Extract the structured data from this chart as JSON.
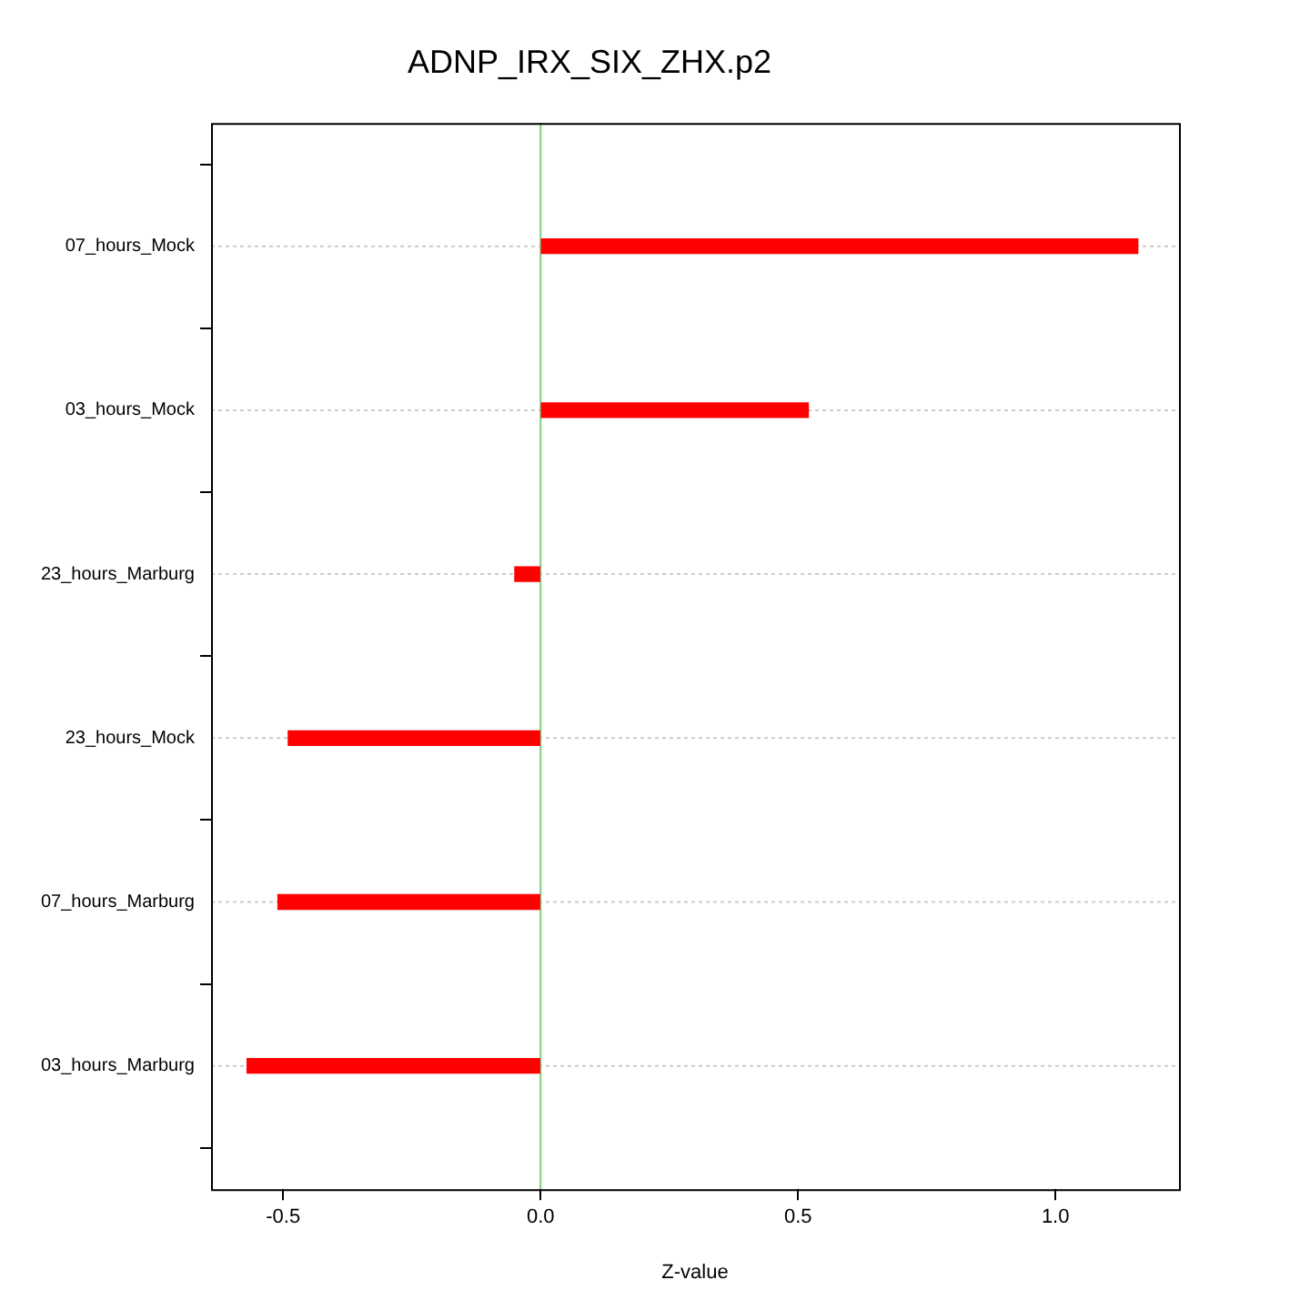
{
  "chart_data": {
    "type": "bar",
    "orientation": "horizontal",
    "title": "ADNP_IRX_SIX_ZHX.p2",
    "xlabel": "Z-value",
    "categories": [
      "07_hours_Mock",
      "03_hours_Mock",
      "23_hours_Marburg",
      "23_hours_Mock",
      "07_hours_Marburg",
      "03_hours_Marburg"
    ],
    "values": [
      1.16,
      0.52,
      -0.05,
      -0.49,
      -0.51,
      -0.57
    ],
    "color": "#ff0000",
    "xlim": [
      -0.64,
      1.24
    ],
    "xticks": [
      -0.5,
      {
        "value": 0,
        "label": "0.0"
      },
      0.5,
      {
        "value": 1,
        "label": "1.0"
      }
    ],
    "ref_lines": [
      {
        "axis": "x",
        "value": 0,
        "color": "#80d080"
      }
    ],
    "grid": "y",
    "legend": false
  }
}
